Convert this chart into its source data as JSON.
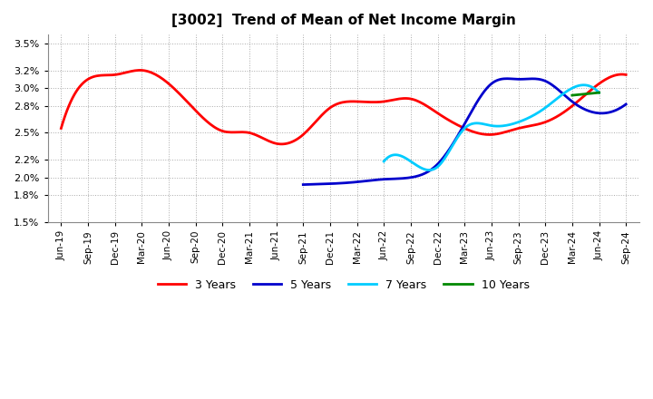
{
  "title": "[3002]  Trend of Mean of Net Income Margin",
  "background_color": "#ffffff",
  "grid_color": "#aaaaaa",
  "ylim": [
    0.015,
    0.036
  ],
  "yticks": [
    0.015,
    0.018,
    0.02,
    0.022,
    0.025,
    0.028,
    0.03,
    0.032,
    0.035
  ],
  "x_labels": [
    "Jun-19",
    "Sep-19",
    "Dec-19",
    "Mar-20",
    "Jun-20",
    "Sep-20",
    "Dec-20",
    "Mar-21",
    "Jun-21",
    "Sep-21",
    "Dec-21",
    "Mar-22",
    "Jun-22",
    "Sep-22",
    "Dec-22",
    "Mar-23",
    "Jun-23",
    "Sep-23",
    "Dec-23",
    "Mar-24",
    "Jun-24",
    "Sep-24"
  ],
  "series": {
    "3 Years": {
      "color": "#ff0000",
      "x": [
        "Jun-19",
        "Sep-19",
        "Dec-19",
        "Mar-20",
        "Jun-20",
        "Sep-20",
        "Dec-20",
        "Mar-21",
        "Jun-21",
        "Sep-21",
        "Dec-21",
        "Mar-22",
        "Jun-22",
        "Sep-22",
        "Dec-22",
        "Mar-23",
        "Jun-23",
        "Sep-23",
        "Dec-23",
        "Mar-24",
        "Jun-24",
        "Sep-24"
      ],
      "y": [
        0.0255,
        0.031,
        0.0315,
        0.032,
        0.0305,
        0.0275,
        0.0252,
        0.025,
        0.0238,
        0.0248,
        0.0278,
        0.0285,
        0.0285,
        0.0288,
        0.0272,
        0.0255,
        0.0248,
        0.0255,
        0.0262,
        0.028,
        0.0305,
        0.0315
      ]
    },
    "5 Years": {
      "color": "#0000cc",
      "x": [
        "Sep-21",
        "Dec-21",
        "Mar-22",
        "Jun-22",
        "Sep-22",
        "Dec-22",
        "Mar-23",
        "Jun-23",
        "Sep-23",
        "Dec-23",
        "Mar-24",
        "Jun-24",
        "Sep-24"
      ],
      "y": [
        0.0192,
        0.0193,
        0.0195,
        0.0198,
        0.02,
        0.0215,
        0.026,
        0.0305,
        0.031,
        0.0308,
        0.0285,
        0.0272,
        0.0282
      ]
    },
    "7 Years": {
      "color": "#00ccff",
      "x": [
        "Jun-22",
        "Sep-22",
        "Dec-22",
        "Mar-23",
        "Jun-23",
        "Sep-23",
        "Dec-23",
        "Mar-24",
        "Jun-24"
      ],
      "y": [
        0.0218,
        0.0218,
        0.0212,
        0.0255,
        0.0258,
        0.0262,
        0.0278,
        0.03,
        0.0295
      ]
    },
    "10 Years": {
      "color": "#008800",
      "x": [
        "Mar-24",
        "Jun-24"
      ],
      "y": [
        0.0292,
        0.0295
      ]
    }
  },
  "legend_labels": [
    "3 Years",
    "5 Years",
    "7 Years",
    "10 Years"
  ],
  "legend_colors": [
    "#ff0000",
    "#0000cc",
    "#00ccff",
    "#008800"
  ]
}
